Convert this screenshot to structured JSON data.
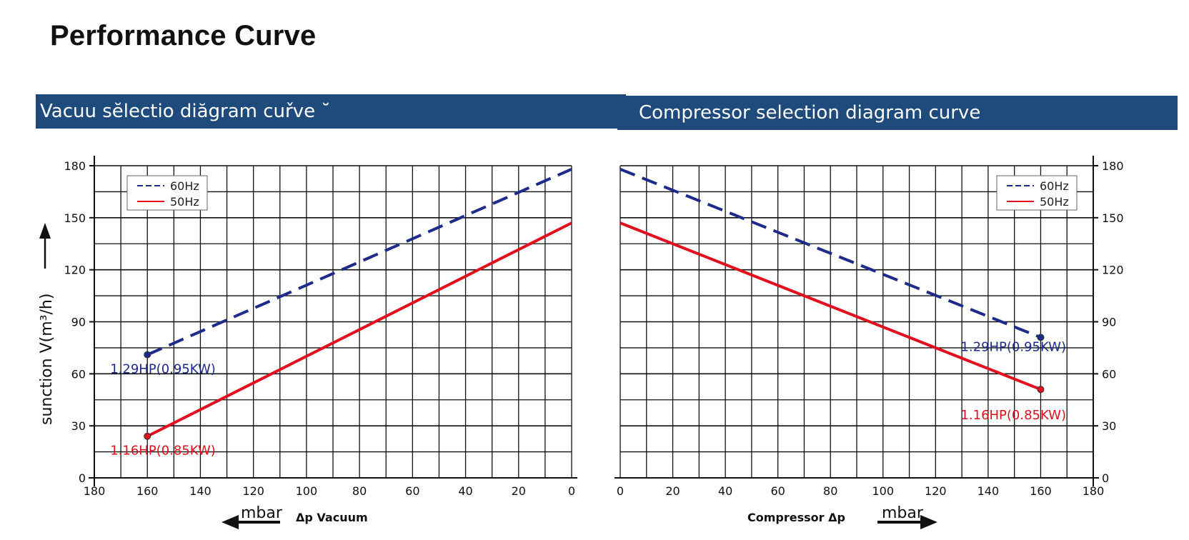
{
  "page": {
    "title": "Performance Curve"
  },
  "banners": {
    "left": "Vacuu sĕlectio diăgram cuřve   ˘",
    "right": "Compressor selection diagram curve"
  },
  "colors": {
    "banner": "#1e4a7c",
    "series_60hz": "#1f2b8a",
    "series_50hz": "#e0101e",
    "grid": "#111111"
  },
  "chart_data": [
    {
      "id": "vacuum",
      "type": "line",
      "title": "Vacuu sĕlectio diăgram cuřve",
      "ylabel": "sunction V(m³/h)",
      "xlabel": "mbar",
      "xlabel_extra": "Δp Vacuum",
      "xlim": [
        180,
        0
      ],
      "ylim": [
        0,
        180
      ],
      "xticks": [
        180,
        160,
        140,
        120,
        100,
        80,
        60,
        40,
        20,
        0
      ],
      "yticks": [
        0,
        30,
        60,
        90,
        120,
        150,
        180
      ],
      "yaxis_side": "left",
      "grid": true,
      "legend_position": "top-left",
      "series": [
        {
          "name": "60Hz",
          "style": "dashed",
          "color": "#1f2b8a",
          "x": [
            160,
            0
          ],
          "y": [
            71,
            178
          ]
        },
        {
          "name": "50Hz",
          "style": "solid",
          "color": "#e0101e",
          "x": [
            160,
            0
          ],
          "y": [
            24,
            147
          ]
        }
      ],
      "annotations": [
        {
          "text": "1.29HP(0.95KW)",
          "series": "60Hz",
          "x": 160,
          "y": 71
        },
        {
          "text": "1.16HP(0.85KW)",
          "series": "50Hz",
          "x": 160,
          "y": 24
        }
      ]
    },
    {
      "id": "compressor",
      "type": "line",
      "title": "Compressor selection diagram curve",
      "xlabel": "mbar",
      "xlabel_extra": "Compressor Δp",
      "xlim": [
        0,
        180
      ],
      "ylim": [
        0,
        180
      ],
      "xticks": [
        0,
        20,
        40,
        60,
        80,
        100,
        120,
        140,
        160,
        180
      ],
      "yticks": [
        0,
        30,
        60,
        90,
        120,
        150,
        180
      ],
      "yaxis_side": "right",
      "grid": true,
      "legend_position": "top-right",
      "series": [
        {
          "name": "60Hz",
          "style": "dashed",
          "color": "#1f2b8a",
          "x": [
            0,
            160
          ],
          "y": [
            178,
            81
          ]
        },
        {
          "name": "50Hz",
          "style": "solid",
          "color": "#e0101e",
          "x": [
            0,
            160
          ],
          "y": [
            147,
            51
          ]
        }
      ],
      "annotations": [
        {
          "text": "1.29HP(0.95KW)",
          "series": "60Hz",
          "x": 160,
          "y": 81
        },
        {
          "text": "1.16HP(0.85KW)",
          "series": "50Hz",
          "x": 160,
          "y": 51
        }
      ]
    }
  ]
}
